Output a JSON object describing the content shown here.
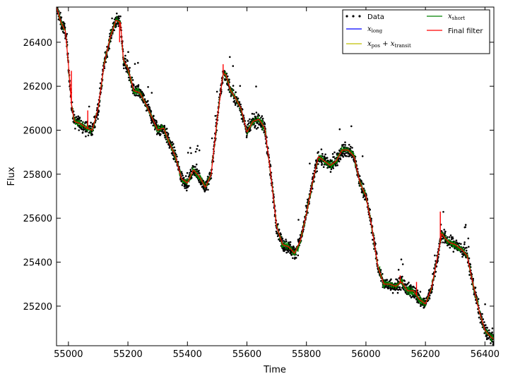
{
  "chart_data": {
    "type": "line",
    "title": "",
    "xlabel": "Time",
    "ylabel": "Flux",
    "xlim": [
      54960,
      56430
    ],
    "ylim": [
      25020,
      26560
    ],
    "xticks": [
      55000,
      55200,
      55400,
      55600,
      55800,
      56000,
      56200,
      56400
    ],
    "yticks": [
      25200,
      25400,
      25600,
      25800,
      26000,
      26200,
      26400
    ],
    "grid": false,
    "legend_placement": "top-right",
    "legend": [
      {
        "key": "data",
        "label": "Data",
        "style": "points",
        "color": "#000000"
      },
      {
        "key": "x_long",
        "label": "x_long",
        "math": true,
        "base": "x",
        "sub": "long",
        "color": "#0000ff"
      },
      {
        "key": "x_pos_transit",
        "label": "x_pos + x_transit",
        "math": true,
        "base": "x",
        "sub": "pos",
        "base2": "x",
        "sub2": "transit",
        "color": "#bfbf00"
      },
      {
        "key": "x_short",
        "label": "x_short",
        "math": true,
        "base": "x",
        "sub": "short",
        "color": "#008000"
      },
      {
        "key": "final_filter",
        "label": "Final filter",
        "color": "#ff0000"
      }
    ],
    "trend": {
      "name": "Final filter",
      "color": "#ff0000",
      "x": [
        54960,
        54975,
        54990,
        55000,
        55010,
        55020,
        55040,
        55060,
        55080,
        55100,
        55120,
        55140,
        55160,
        55175,
        55185,
        55200,
        55220,
        55240,
        55260,
        55280,
        55300,
        55320,
        55340,
        55360,
        55380,
        55400,
        55420,
        55440,
        55460,
        55480,
        55500,
        55520,
        55530,
        55545,
        55560,
        55580,
        55600,
        55620,
        55640,
        55660,
        55680,
        55700,
        55720,
        55740,
        55760,
        55780,
        55800,
        55820,
        55840,
        55860,
        55880,
        55900,
        55920,
        55940,
        55960,
        55980,
        56000,
        56020,
        56040,
        56060,
        56080,
        56100,
        56120,
        56140,
        56160,
        56180,
        56200,
        56220,
        56240,
        56255,
        56265,
        56280,
        56300,
        56320,
        56340,
        56360,
        56380,
        56400,
        56420,
        56430
      ],
      "y": [
        26560,
        26490,
        26450,
        26300,
        26120,
        26040,
        26030,
        26010,
        26000,
        26100,
        26300,
        26420,
        26500,
        26490,
        26320,
        26280,
        26180,
        26170,
        26120,
        26060,
        26000,
        26010,
        25940,
        25880,
        25780,
        25760,
        25820,
        25790,
        25740,
        25800,
        26050,
        26260,
        26250,
        26180,
        26150,
        26100,
        25990,
        26040,
        26050,
        26010,
        25800,
        25560,
        25480,
        25470,
        25440,
        25500,
        25620,
        25760,
        25880,
        25860,
        25840,
        25860,
        25910,
        25910,
        25880,
        25760,
        25700,
        25560,
        25380,
        25300,
        25300,
        25290,
        25310,
        25270,
        25270,
        25230,
        25210,
        25280,
        25420,
        25530,
        25510,
        25490,
        25480,
        25460,
        25430,
        25300,
        25180,
        25090,
        25060,
        25050
      ]
    },
    "spikes": [
      {
        "x": 55010,
        "y": 26270
      },
      {
        "x": 55065,
        "y": 26090
      },
      {
        "x": 55172,
        "y": 26400
      },
      {
        "x": 55520,
        "y": 26300
      },
      {
        "x": 56115,
        "y": 25340
      },
      {
        "x": 56170,
        "y": 25310
      },
      {
        "x": 56250,
        "y": 25630
      }
    ]
  }
}
